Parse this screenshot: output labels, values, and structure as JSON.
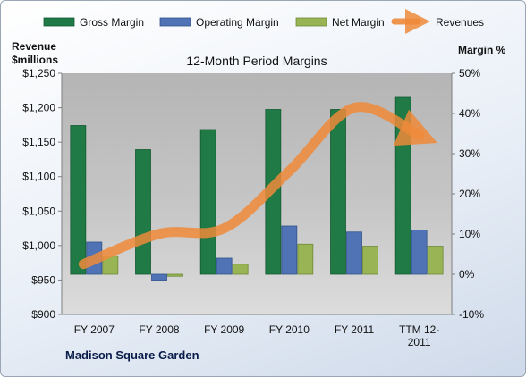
{
  "chart_data": {
    "type": "bar",
    "title": "12-Month Period Margins",
    "company": "Madison Square Garden",
    "left_axis_title": [
      "Revenue",
      "$millions"
    ],
    "right_axis_title": "Margin %",
    "categories": [
      "FY 2007",
      "FY 2008",
      "FY 2009",
      "FY 2010",
      "FY 2011",
      "TTM 12-2011"
    ],
    "category_labels": [
      [
        "FY 2007"
      ],
      [
        "FY 2008"
      ],
      [
        "FY 2009"
      ],
      [
        "FY 2010"
      ],
      [
        "FY 2011"
      ],
      [
        "TTM 12-",
        "2011"
      ]
    ],
    "left_axis": {
      "min": 900,
      "max": 1250,
      "ticks": [
        900,
        950,
        1000,
        1050,
        1100,
        1150,
        1200,
        1250
      ],
      "tick_labels": [
        "$900",
        "$950",
        "$1,000",
        "$1,050",
        "$1,100",
        "$1,150",
        "$1,200",
        "$1,250"
      ]
    },
    "right_axis": {
      "min": -10,
      "max": 50,
      "ticks": [
        -10,
        0,
        10,
        20,
        30,
        40,
        50
      ],
      "tick_labels": [
        "-10%",
        "0%",
        "10%",
        "20%",
        "30%",
        "40%",
        "50%"
      ]
    },
    "legend_position": "top",
    "grid": false,
    "series": [
      {
        "name": "Gross Margin",
        "kind": "bar",
        "axis": "right",
        "color": "#1f7a45",
        "values": [
          37,
          31,
          36,
          41,
          41,
          44
        ]
      },
      {
        "name": "Operating Margin",
        "kind": "bar",
        "axis": "right",
        "color": "#4f73b4",
        "values": [
          8,
          -1.5,
          4,
          12,
          10.5,
          11
        ]
      },
      {
        "name": "Net Margin",
        "kind": "bar",
        "axis": "right",
        "color": "#98b454",
        "values": [
          4.5,
          -0.5,
          2.5,
          7.5,
          7,
          7
        ]
      },
      {
        "name": "Revenues",
        "kind": "line",
        "axis": "left",
        "color": "#ee8a3a",
        "values": [
          973,
          1017,
          1025,
          1108,
          1200,
          1160
        ]
      }
    ]
  }
}
